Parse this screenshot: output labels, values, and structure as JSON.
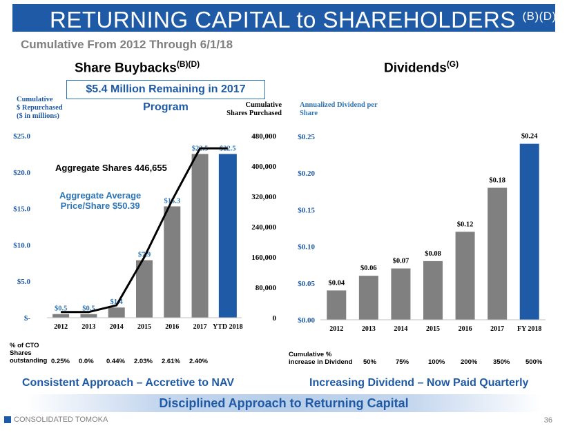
{
  "slide": {
    "title": "RETURNING CAPITAL to SHAREHOLDERS",
    "title_sup": "(B)(D)",
    "subtitle": "Cumulative From 2012 Through 6/1/18",
    "page_number": "36",
    "company": "CONSOLIDATED TOMOKA"
  },
  "buybacks": {
    "heading": "Share Buybacks",
    "heading_sup": "(B)(D)",
    "remaining_note": "$5.4 Million Remaining in 2017 Program",
    "left_axis_note_1": "Cumulative",
    "left_axis_note_2": "$ Repurchased",
    "left_axis_note_3": "($ in millions)",
    "right_axis_note_1": "Cumulative",
    "right_axis_note_2": "Shares Purchased",
    "aggregate_shares": "Aggregate Shares 446,655",
    "avg_price_1": "Aggregate Average",
    "avg_price_2": "Price/Share $50.39",
    "pct_label_1": "% of CTO",
    "pct_label_2": "Shares",
    "pct_label_3": "outstanding",
    "pct_values": [
      "0.25%",
      "0.0%",
      "0.44%",
      "2.03%",
      "2.61%",
      "2.40%"
    ],
    "footer": "Consistent Approach – Accretive to NAV"
  },
  "dividends": {
    "heading": "Dividends",
    "heading_sup": "(G)",
    "axis_note_1": "Annualized Dividend per",
    "axis_note_2": "Share",
    "cum_label_1": "Cumulative %",
    "cum_label_2": "increase in Dividend",
    "cum_values": [
      "50%",
      "75%",
      "100%",
      "200%",
      "350%",
      "500%"
    ],
    "footer": "Increasing Dividend – Now Paid Quarterly"
  },
  "bottom_banner": "Disciplined Approach to Returning Capital",
  "colors": {
    "brand_blue": "#1f5aa6",
    "bar_gray": "#808080",
    "bar_highlight": "#1f5aa6",
    "label_blue": "#2e75b6"
  },
  "chart_data": [
    {
      "type": "bar",
      "title": "Share Buybacks",
      "categories": [
        "2012",
        "2013",
        "2014",
        "2015",
        "2016",
        "2017",
        "YTD 2018"
      ],
      "series": [
        {
          "name": "Cumulative $ Repurchased ($ in millions)",
          "axis": "left",
          "values": [
            0.5,
            0.5,
            1.4,
            7.9,
            15.3,
            22.5,
            22.5
          ],
          "labels": [
            "$0.5",
            "$0.5",
            "$1.4",
            "$7.9",
            "$15.3",
            "$22.5",
            "$22.5"
          ]
        },
        {
          "name": "Cumulative Shares Purchased",
          "axis": "right",
          "type": "line",
          "values": [
            15000,
            15000,
            33000,
            160000,
            310000,
            446655,
            446655
          ]
        }
      ],
      "y_left": {
        "ylim": [
          0,
          25
        ],
        "ticks": [
          0,
          5,
          10,
          15,
          20,
          25
        ],
        "tick_labels": [
          "$-",
          "$5.0",
          "$10.0",
          "$15.0",
          "$20.0",
          "$25.0"
        ]
      },
      "y_right": {
        "ylim": [
          0,
          480000
        ],
        "ticks": [
          0,
          80000,
          160000,
          240000,
          320000,
          400000,
          480000
        ],
        "tick_labels": [
          "0",
          "80,000",
          "160,000",
          "240,000",
          "320,000",
          "400,000",
          "480,000"
        ]
      }
    },
    {
      "type": "bar",
      "title": "Dividends",
      "categories": [
        "2012",
        "2013",
        "2014",
        "2015",
        "2016",
        "2017",
        "FY 2018"
      ],
      "values": [
        0.04,
        0.06,
        0.07,
        0.08,
        0.12,
        0.18,
        0.24
      ],
      "labels": [
        "$0.04",
        "$0.06",
        "$0.07",
        "$0.08",
        "$0.12",
        "$0.18",
        "$0.24"
      ],
      "ylim": [
        0,
        0.25
      ],
      "ticks": [
        0,
        0.05,
        0.1,
        0.15,
        0.2,
        0.25
      ],
      "tick_labels": [
        "$0.00",
        "$0.05",
        "$0.10",
        "$0.15",
        "$0.20",
        "$0.25"
      ]
    }
  ]
}
